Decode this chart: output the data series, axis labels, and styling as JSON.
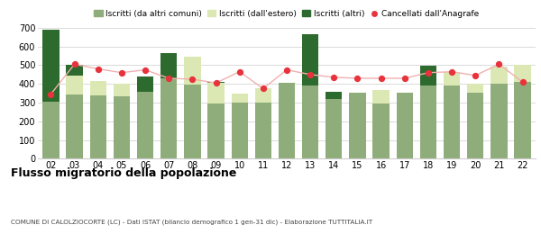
{
  "years": [
    "02",
    "03",
    "04",
    "05",
    "06",
    "07",
    "08",
    "09",
    "10",
    "11",
    "12",
    "13",
    "14",
    "15",
    "16",
    "17",
    "18",
    "19",
    "20",
    "21",
    "22"
  ],
  "iscritti_altri_comuni": [
    305,
    345,
    340,
    335,
    360,
    430,
    395,
    295,
    300,
    300,
    405,
    390,
    320,
    355,
    295,
    355,
    390,
    390,
    355,
    400,
    410
  ],
  "iscritti_estero": [
    0,
    100,
    75,
    65,
    0,
    0,
    150,
    110,
    48,
    75,
    0,
    0,
    0,
    0,
    70,
    0,
    0,
    75,
    45,
    90,
    90
  ],
  "iscritti_altri": [
    385,
    55,
    0,
    0,
    80,
    135,
    0,
    5,
    0,
    0,
    0,
    275,
    40,
    0,
    0,
    0,
    105,
    0,
    0,
    0,
    0
  ],
  "cancellati": [
    345,
    505,
    480,
    460,
    475,
    430,
    425,
    405,
    465,
    375,
    475,
    450,
    435,
    430,
    430,
    430,
    460,
    465,
    445,
    505,
    410
  ],
  "color_altri_comuni": "#8fad7a",
  "color_estero": "#dce8b4",
  "color_altri": "#2d6a2d",
  "color_cancellati": "#e8323c",
  "color_cancellati_line": "#f0b0b0",
  "ylim": [
    0,
    700
  ],
  "yticks": [
    0,
    100,
    200,
    300,
    400,
    500,
    600,
    700
  ],
  "title": "Flusso migratorio della popolazione",
  "subtitle": "COMUNE DI CALOLZIOCORTE (LC) - Dati ISTAT (bilancio demografico 1 gen-31 dic) - Elaborazione TUTTITALIA.IT",
  "legend_labels": [
    "Iscritti (da altri comuni)",
    "Iscritti (dall'estero)",
    "Iscritti (altri)",
    "Cancellati dall'Anagrafe"
  ],
  "bg_color": "#ffffff",
  "grid_color": "#cccccc"
}
